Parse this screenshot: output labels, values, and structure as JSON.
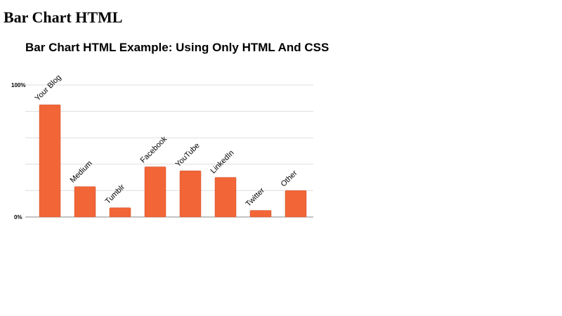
{
  "page": {
    "heading": "Bar Chart HTML"
  },
  "chart_data": {
    "type": "bar",
    "title": "Bar Chart HTML Example: Using Only HTML And CSS",
    "categories": [
      "Your Blog",
      "Medium",
      "Tumblr",
      "Facebook",
      "YouTube",
      "LinkedIn",
      "Twitter",
      "Other"
    ],
    "values": [
      85,
      23,
      7,
      38,
      35,
      30,
      5,
      20
    ],
    "ylim": [
      0,
      100
    ],
    "yticks": [
      {
        "value": 100,
        "label": "100%"
      },
      {
        "value": 0,
        "label": "0%"
      }
    ],
    "gridlines": [
      0,
      20,
      40,
      60,
      80,
      100
    ],
    "grid": true,
    "legend": "none",
    "bar_color": "#f26537",
    "bar_edge_color": "#c8532c",
    "grid_color": "#dddddd",
    "axis_color": "#888888"
  }
}
